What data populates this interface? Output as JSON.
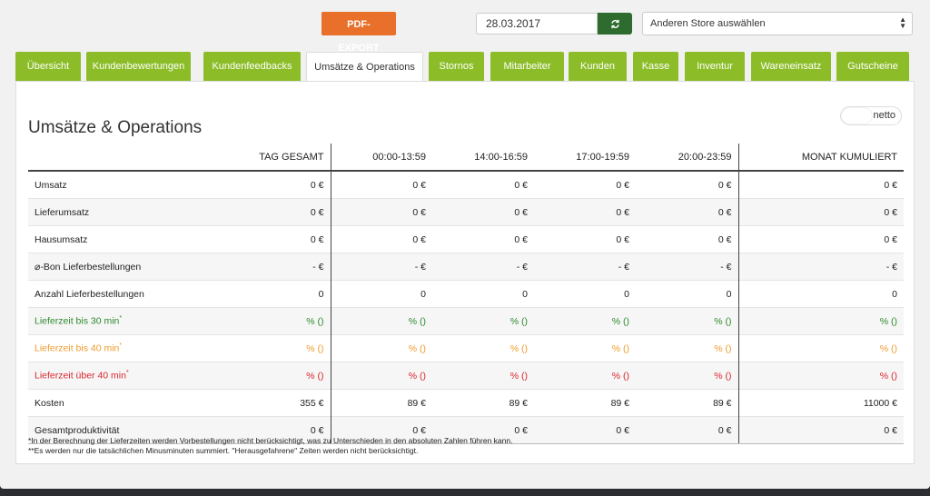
{
  "toolbar": {
    "pdf_export_label": "PDF-EXPORT",
    "date_value": "28.03.2017",
    "refresh_icon": "refresh-icon",
    "store_select_value": "Anderen Store auswählen"
  },
  "tabs": [
    {
      "label": "Übersicht",
      "active": false
    },
    {
      "label": "Kundenbewertungen",
      "active": false
    },
    {
      "label": "Kundenfeedbacks",
      "active": false
    },
    {
      "label": "Umsätze & Operations",
      "active": true
    },
    {
      "label": "Stornos",
      "active": false
    },
    {
      "label": "Mitarbeiter",
      "active": false
    },
    {
      "label": "Kunden",
      "active": false
    },
    {
      "label": "Kasse",
      "active": false
    },
    {
      "label": "Inventur",
      "active": false
    },
    {
      "label": "Wareneinsatz",
      "active": false
    },
    {
      "label": "Gutscheine",
      "active": false
    }
  ],
  "panel": {
    "title": "Umsätze & Operations",
    "toggle_label": "netto"
  },
  "table": {
    "headers": [
      "",
      "TAG GESAMT",
      "00:00-13:59",
      "14:00-16:59",
      "17:00-19:59",
      "20:00-23:59",
      "MONAT KUMULIERT"
    ],
    "rows": [
      {
        "label": "Umsatz",
        "color": "",
        "values": [
          "0 €",
          "0 €",
          "0 €",
          "0 €",
          "0 €",
          "0 €"
        ]
      },
      {
        "label": "Lieferumsatz",
        "color": "",
        "values": [
          "0 €",
          "0 €",
          "0 €",
          "0 €",
          "0 €",
          "0 €"
        ]
      },
      {
        "label": "Hausumsatz",
        "color": "",
        "values": [
          "0 €",
          "0 €",
          "0 €",
          "0 €",
          "0 €",
          "0 €"
        ]
      },
      {
        "label": "⌀-Bon Lieferbestellungen",
        "color": "",
        "values": [
          "- €",
          "- €",
          "- €",
          "- €",
          "- €",
          "- €"
        ]
      },
      {
        "label": "Anzahl Lieferbestellungen",
        "color": "",
        "values": [
          "0",
          "0",
          "0",
          "0",
          "0",
          "0"
        ]
      },
      {
        "label": "Lieferzeit bis 30 min",
        "sup": "*",
        "color": "green",
        "values": [
          "% ()",
          "% ()",
          "% ()",
          "% ()",
          "% ()",
          "% ()"
        ]
      },
      {
        "label": "Lieferzeit bis 40 min",
        "sup": "*",
        "color": "orange",
        "values": [
          "% ()",
          "% ()",
          "% ()",
          "% ()",
          "% ()",
          "% ()"
        ]
      },
      {
        "label": "Lieferzeit über 40 min",
        "sup": "*",
        "color": "red",
        "values": [
          "% ()",
          "% ()",
          "% ()",
          "% ()",
          "% ()",
          "% ()"
        ]
      },
      {
        "label": "Kosten",
        "color": "",
        "values": [
          "355 €",
          "89 €",
          "89 €",
          "89 €",
          "89 €",
          "11000 €"
        ]
      },
      {
        "label": "Gesamtproduktivität",
        "color": "",
        "values": [
          "0 €",
          "0 €",
          "0 €",
          "0 €",
          "0 €",
          "0 €"
        ]
      }
    ]
  },
  "footnotes": [
    "*In der Berechnung der Lieferzeiten werden Vorbestellungen nicht berücksichtigt, was zu Unterschieden in den absoluten Zahlen führen kann.",
    "**Es werden nur die tatsächlichen Minusminuten summiert. \"Herausgefahrene\" Zeiten werden nicht berücksichtigt."
  ]
}
